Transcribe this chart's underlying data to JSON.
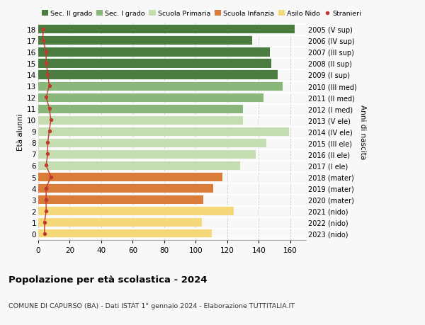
{
  "ages": [
    18,
    17,
    16,
    15,
    14,
    13,
    12,
    11,
    10,
    9,
    8,
    7,
    6,
    5,
    4,
    3,
    2,
    1,
    0
  ],
  "labels_right": [
    "2005 (V sup)",
    "2006 (IV sup)",
    "2007 (III sup)",
    "2008 (II sup)",
    "2009 (I sup)",
    "2010 (III med)",
    "2011 (II med)",
    "2012 (I med)",
    "2013 (V ele)",
    "2014 (IV ele)",
    "2015 (III ele)",
    "2016 (II ele)",
    "2017 (I ele)",
    "2018 (mater)",
    "2019 (mater)",
    "2020 (mater)",
    "2021 (nido)",
    "2022 (nido)",
    "2023 (nido)"
  ],
  "bar_values": [
    163,
    136,
    147,
    148,
    152,
    155,
    143,
    130,
    130,
    159,
    145,
    138,
    128,
    117,
    111,
    105,
    124,
    104,
    110
  ],
  "stranieri_values": [
    3,
    3,
    5,
    5,
    6,
    7,
    5,
    7,
    8,
    7,
    6,
    6,
    5,
    8,
    5,
    5,
    5,
    4,
    4
  ],
  "bar_colors": [
    "#4a7c3f",
    "#4a7c3f",
    "#4a7c3f",
    "#4a7c3f",
    "#4a7c3f",
    "#8ab87a",
    "#8ab87a",
    "#8ab87a",
    "#c5ddb0",
    "#c5ddb0",
    "#c5ddb0",
    "#c5ddb0",
    "#c5ddb0",
    "#d97c3a",
    "#d97c3a",
    "#d97c3a",
    "#f5d87a",
    "#f5d87a",
    "#f5d87a"
  ],
  "legend_labels": [
    "Sec. II grado",
    "Sec. I grado",
    "Scuola Primaria",
    "Scuola Infanzia",
    "Asilo Nido",
    "Stranieri"
  ],
  "legend_colors": [
    "#4a7c3f",
    "#8ab87a",
    "#c5ddb0",
    "#d97c3a",
    "#f5d87a",
    "#c0392b"
  ],
  "stranieri_color": "#c0392b",
  "title": "Popolazione per età scolastica - 2024",
  "subtitle": "COMUNE DI CAPURSO (BA) - Dati ISTAT 1° gennaio 2024 - Elaborazione TUTTITALIA.IT",
  "ylabel_left": "Età alunni",
  "ylabel_right": "Anni di nascita",
  "xlim": [
    0,
    170
  ],
  "xticks": [
    0,
    20,
    40,
    60,
    80,
    100,
    120,
    140,
    160
  ],
  "bg_color": "#f8f8f8",
  "bar_height": 0.82
}
